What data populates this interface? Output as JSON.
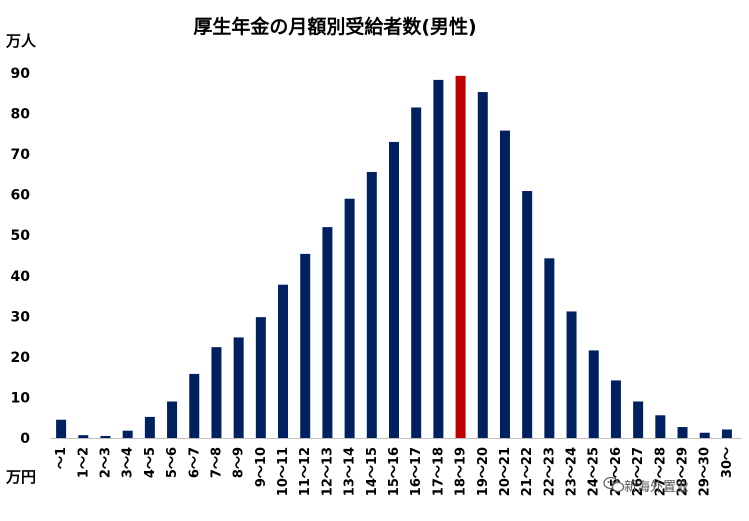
{
  "chart_data": {
    "type": "bar",
    "title": "厚生年金の月額別受給者数(男性)",
    "ylabel": "万人",
    "xlabel": "万円",
    "ylim": [
      0,
      90
    ],
    "yticks": [
      0,
      10,
      20,
      30,
      40,
      50,
      60,
      70,
      80,
      90
    ],
    "grid": false,
    "bar_color": "#002060",
    "highlight_color": "#C00000",
    "highlight_category": "18～19",
    "categories": [
      "～1",
      "1～2",
      "2～3",
      "3～4",
      "4～5",
      "5～6",
      "6～7",
      "7～8",
      "8～9",
      "9～10",
      "10～11",
      "11～12",
      "12～13",
      "13～14",
      "14～15",
      "15～16",
      "16～17",
      "17～18",
      "18～19",
      "19～20",
      "20～21",
      "21～22",
      "22～23",
      "23～24",
      "24～25",
      "25～26",
      "26～27",
      "27～28",
      "28～29",
      "29～30",
      "30～"
    ],
    "values": [
      4.5,
      0.7,
      0.5,
      1.8,
      5.2,
      9.0,
      15.8,
      22.4,
      24.8,
      29.8,
      37.8,
      45.4,
      52.0,
      59.0,
      65.6,
      73.0,
      81.5,
      88.3,
      89.3,
      85.3,
      75.8,
      60.9,
      44.3,
      31.2,
      21.6,
      14.2,
      9.0,
      5.6,
      2.7,
      1.3,
      2.1
    ]
  },
  "watermark": {
    "icon": "wechat-icon",
    "text": "新海外置业"
  }
}
